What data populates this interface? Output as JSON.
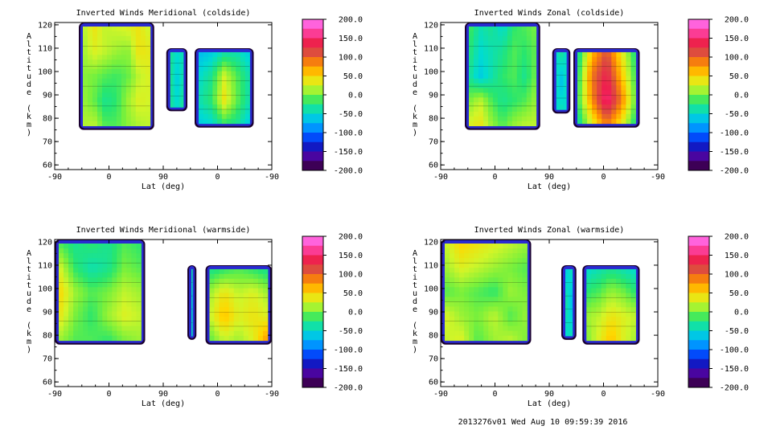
{
  "chart_data": [
    {
      "type": "heatmap",
      "title": "Inverted Winds Meridional (coldside)",
      "xlabel": "Lat (deg)",
      "ylabel": "Altitude (km)",
      "x_tick_labels": [
        "-90",
        "0",
        "90",
        "0",
        "-90"
      ],
      "y_ticks": [
        60,
        70,
        80,
        90,
        100,
        110,
        120
      ],
      "ylim": [
        58,
        121
      ],
      "colorbar": {
        "ticks": [
          "200.0",
          "150.0",
          "100.0",
          "50.0",
          "0.0",
          "-50.0",
          "-100.0",
          "-150.0",
          "-200.0"
        ],
        "range": [
          -200,
          200
        ]
      },
      "regions": [
        {
          "lat_range": [
            -50,
            75
          ],
          "alt_range": [
            75,
            121
          ],
          "base": 15,
          "cells": [
            [
              15,
              40,
              20,
              25,
              30,
              40,
              20
            ],
            [
              10,
              30,
              20,
              10,
              5,
              40,
              35
            ],
            [
              5,
              0,
              -10,
              -15,
              -5,
              20,
              30
            ],
            [
              10,
              -5,
              -30,
              -20,
              10,
              30,
              25
            ],
            [
              15,
              20,
              -10,
              -10,
              5,
              15,
              20
            ]
          ]
        },
        {
          "lat_range": [
            95,
            130
          ],
          "alt_range": [
            83,
            110
          ],
          "base": -30,
          "cells": [
            [
              -30,
              -50,
              -40
            ],
            [
              -25,
              -60,
              -35
            ],
            [
              -30,
              -50,
              -30
            ]
          ]
        },
        {
          "lat_range": [
            142,
            240
          ],
          "alt_range": [
            76,
            110
          ],
          "base": -40,
          "cells": [
            [
              -70,
              -60,
              -40,
              -40,
              -60
            ],
            [
              -50,
              -30,
              25,
              -10,
              -40
            ],
            [
              -40,
              -20,
              40,
              -5,
              -40
            ],
            [
              -60,
              -50,
              -20,
              -30,
              -60
            ]
          ]
        }
      ]
    },
    {
      "type": "heatmap",
      "title": "Inverted Winds Zonal (coldside)",
      "xlabel": "Lat (deg)",
      "ylabel": "Altitude (km)",
      "x_tick_labels": [
        "-90",
        "0",
        "90",
        "0",
        "-90"
      ],
      "y_ticks": [
        60,
        70,
        80,
        90,
        100,
        110,
        120
      ],
      "ylim": [
        58,
        121
      ],
      "colorbar": {
        "ticks": [
          "200.0",
          "150.0",
          "100.0",
          "50.0",
          "0.0",
          "-50.0",
          "-100.0",
          "-150.0",
          "-200.0"
        ],
        "range": [
          -200,
          200
        ]
      },
      "regions": [
        {
          "lat_range": [
            -50,
            75
          ],
          "alt_range": [
            75,
            121
          ],
          "base": -20,
          "cells": [
            [
              -10,
              -40,
              -30,
              -50,
              -20,
              -10,
              0
            ],
            [
              -20,
              -50,
              -40,
              -30,
              -10,
              -20,
              -5
            ],
            [
              -30,
              -60,
              -40,
              -20,
              -10,
              -30,
              0
            ],
            [
              0,
              20,
              -10,
              -30,
              -20,
              -10,
              10
            ],
            [
              30,
              40,
              10,
              -10,
              10,
              20,
              20
            ]
          ]
        },
        {
          "lat_range": [
            95,
            125
          ],
          "alt_range": [
            82,
            110
          ],
          "base": -40,
          "cells": [
            [
              -50,
              -30,
              -50
            ],
            [
              -40,
              -70,
              -40
            ],
            [
              -50,
              -40,
              -50
            ]
          ]
        },
        {
          "lat_range": [
            130,
            240
          ],
          "alt_range": [
            76,
            110
          ],
          "base": 10,
          "cells": [
            [
              -40,
              60,
              110,
              40,
              -30
            ],
            [
              -30,
              90,
              140,
              60,
              -20
            ],
            [
              -20,
              80,
              160,
              90,
              -10
            ],
            [
              -40,
              30,
              90,
              40,
              -30
            ]
          ]
        }
      ]
    },
    {
      "type": "heatmap",
      "title": "Inverted Winds Meridional (warmside)",
      "xlabel": "Lat (deg)",
      "ylabel": "Altitude (km)",
      "x_tick_labels": [
        "-90",
        "0",
        "90",
        "0",
        "-90"
      ],
      "y_ticks": [
        60,
        70,
        80,
        90,
        100,
        110,
        120
      ],
      "ylim": [
        58,
        121
      ],
      "colorbar": {
        "ticks": [
          "200.0",
          "150.0",
          "100.0",
          "50.0",
          "0.0",
          "-50.0",
          "-100.0",
          "-150.0",
          "-200.0"
        ],
        "range": [
          -200,
          200
        ]
      },
      "regions": [
        {
          "lat_range": [
            -90,
            60
          ],
          "alt_range": [
            76,
            121
          ],
          "base": 0,
          "cells": [
            [
              -10,
              -30,
              -20,
              -30,
              -10,
              -20
            ],
            [
              30,
              -20,
              -40,
              -30,
              0,
              -10
            ],
            [
              50,
              10,
              -10,
              0,
              20,
              10
            ],
            [
              40,
              0,
              -20,
              10,
              30,
              20
            ],
            [
              10,
              -10,
              -10,
              -20,
              0,
              10
            ]
          ]
        },
        {
          "lat_range": [
            130,
            145
          ],
          "alt_range": [
            78,
            110
          ],
          "base": -40,
          "cells": [
            [
              -50,
              -30
            ],
            [
              -40,
              -60
            ],
            [
              -50,
              -40
            ]
          ]
        },
        {
          "lat_range": [
            160,
            270
          ],
          "alt_range": [
            76,
            110
          ],
          "base": 10,
          "cells": [
            [
              -30,
              -20,
              -10,
              -20,
              -30
            ],
            [
              10,
              40,
              20,
              30,
              10
            ],
            [
              20,
              60,
              30,
              40,
              30
            ],
            [
              -10,
              20,
              10,
              30,
              80
            ]
          ]
        }
      ]
    },
    {
      "type": "heatmap",
      "title": "Inverted Winds Zonal (warmside)",
      "xlabel": "Lat (deg)",
      "ylabel": "Altitude (km)",
      "x_tick_labels": [
        "-90",
        "0",
        "90",
        "0",
        "-90"
      ],
      "y_ticks": [
        60,
        70,
        80,
        90,
        100,
        110,
        120
      ],
      "ylim": [
        58,
        121
      ],
      "colorbar": {
        "ticks": [
          "200.0",
          "150.0",
          "100.0",
          "50.0",
          "0.0",
          "-50.0",
          "-100.0",
          "-150.0",
          "-200.0"
        ],
        "range": [
          -200,
          200
        ]
      },
      "regions": [
        {
          "lat_range": [
            -90,
            60
          ],
          "alt_range": [
            76,
            121
          ],
          "base": 0,
          "cells": [
            [
              20,
              50,
              40,
              30,
              20,
              10
            ],
            [
              10,
              30,
              20,
              10,
              0,
              -10
            ],
            [
              -10,
              0,
              -10,
              -20,
              10,
              0
            ],
            [
              30,
              10,
              0,
              20,
              -10,
              10
            ],
            [
              20,
              30,
              -10,
              10,
              20,
              0
            ]
          ]
        },
        {
          "lat_range": [
            110,
            135
          ],
          "alt_range": [
            78,
            110
          ],
          "base": -40,
          "cells": [
            [
              -60,
              -40
            ],
            [
              -30,
              -70
            ],
            [
              -50,
              -40
            ]
          ]
        },
        {
          "lat_range": [
            145,
            240
          ],
          "alt_range": [
            76,
            110
          ],
          "base": 0,
          "cells": [
            [
              -50,
              -40,
              -30,
              -40,
              -50
            ],
            [
              -20,
              -10,
              10,
              0,
              -20
            ],
            [
              10,
              20,
              40,
              30,
              20
            ],
            [
              0,
              30,
              60,
              30,
              10
            ]
          ]
        }
      ]
    }
  ],
  "footer": "2013276v01 Wed Aug 10 09:59:39 2016"
}
